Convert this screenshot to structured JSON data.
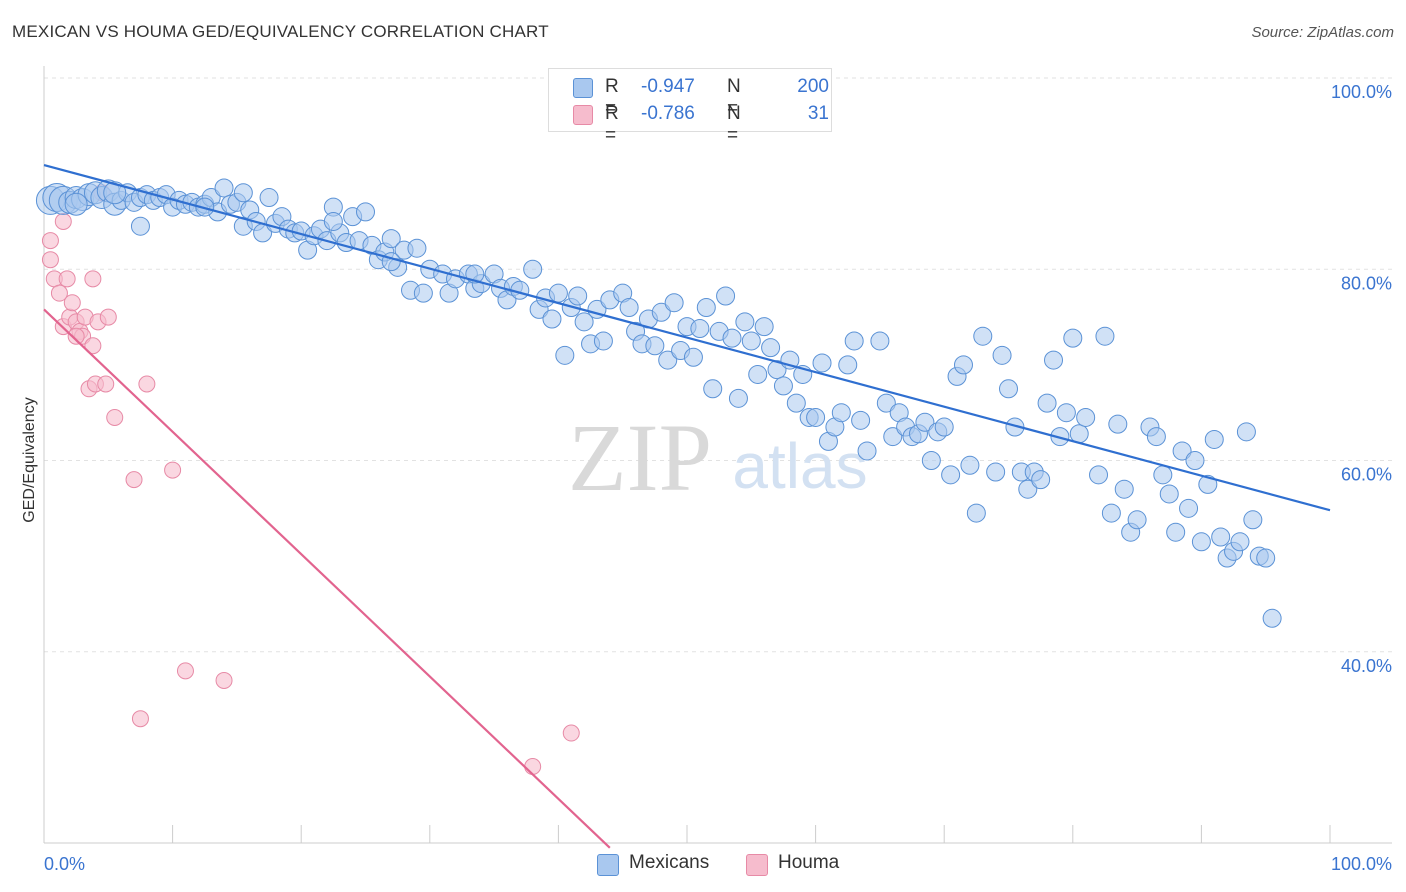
{
  "title": "MEXICAN VS HOUMA GED/EQUIVALENCY CORRELATION CHART",
  "source": "Source: ZipAtlas.com",
  "watermark": {
    "zip": "ZIP",
    "atlas": "atlas"
  },
  "colors": {
    "blue_fill": "#a9c8ef",
    "blue_stroke": "#5b92d6",
    "blue_line": "#2f6fd0",
    "pink_fill": "#f6bccd",
    "pink_stroke": "#e78aa6",
    "pink_line": "#e2648f",
    "tick_text": "#3a74d0",
    "grid": "#e2e2e2"
  },
  "legend": {
    "rows": [
      {
        "r_label": "R =",
        "r_value": "-0.947",
        "n_label": "N =",
        "n_value": "200"
      },
      {
        "r_label": "R =",
        "r_value": "-0.786",
        "n_label": "N =",
        "n_value": "31"
      }
    ]
  },
  "bottom_legend": [
    {
      "label": "Mexicans"
    },
    {
      "label": "Houma"
    }
  ],
  "chart_data": {
    "type": "scatter",
    "title": "MEXICAN VS HOUMA GED/EQUIVALENCY CORRELATION CHART",
    "xlabel": "",
    "ylabel": "GED/Equivalency",
    "xlim": [
      0,
      100
    ],
    "ylim": [
      20,
      100
    ],
    "x_tick_labels": [
      "0.0%",
      "100.0%"
    ],
    "y_ticks": [
      40,
      60,
      80,
      100
    ],
    "y_tick_labels": [
      "40.0%",
      "60.0%",
      "80.0%",
      "100.0%"
    ],
    "grid": true,
    "legend_position": "top-center",
    "series": [
      {
        "name": "Mexicans",
        "R": -0.947,
        "N": 200,
        "trend": [
          [
            0,
            90.9
          ],
          [
            100,
            54.8
          ]
        ],
        "points": [
          [
            0.5,
            87.2
          ],
          [
            1,
            87.5
          ],
          [
            1.5,
            87.2
          ],
          [
            2,
            87.0
          ],
          [
            2.5,
            87.5
          ],
          [
            3,
            87.3
          ],
          [
            3.5,
            87.8
          ],
          [
            4,
            88.0
          ],
          [
            4.5,
            87.5
          ],
          [
            5,
            88.2
          ],
          [
            5.5,
            86.8
          ],
          [
            6,
            87.2
          ],
          [
            6.5,
            88.0
          ],
          [
            7,
            87.0
          ],
          [
            7.5,
            87.5
          ],
          [
            8,
            87.8
          ],
          [
            8.5,
            87.2
          ],
          [
            9,
            87.5
          ],
          [
            9.5,
            87.8
          ],
          [
            10,
            86.5
          ],
          [
            10.5,
            87.2
          ],
          [
            11,
            86.8
          ],
          [
            11.5,
            87.0
          ],
          [
            12,
            86.5
          ],
          [
            12.5,
            86.8
          ],
          [
            13,
            87.5
          ],
          [
            13.5,
            86.0
          ],
          [
            14,
            88.5
          ],
          [
            14.5,
            86.8
          ],
          [
            15,
            87.0
          ],
          [
            15.5,
            84.5
          ],
          [
            16,
            86.2
          ],
          [
            16.5,
            85.0
          ],
          [
            17,
            83.8
          ],
          [
            17.5,
            87.5
          ],
          [
            18,
            84.8
          ],
          [
            18.5,
            85.5
          ],
          [
            19,
            84.2
          ],
          [
            19.5,
            83.8
          ],
          [
            20,
            84.0
          ],
          [
            20.5,
            82.0
          ],
          [
            21,
            83.5
          ],
          [
            21.5,
            84.2
          ],
          [
            22,
            83.0
          ],
          [
            22.5,
            86.5
          ],
          [
            23,
            83.8
          ],
          [
            23.5,
            82.8
          ],
          [
            24,
            85.5
          ],
          [
            24.5,
            83.0
          ],
          [
            25,
            86.0
          ],
          [
            25.5,
            82.5
          ],
          [
            26,
            81.0
          ],
          [
            26.5,
            81.8
          ],
          [
            27,
            83.2
          ],
          [
            27.5,
            80.2
          ],
          [
            28,
            82.0
          ],
          [
            28.5,
            77.8
          ],
          [
            29,
            82.2
          ],
          [
            29.5,
            77.5
          ],
          [
            30,
            80.0
          ],
          [
            31,
            79.5
          ],
          [
            31.5,
            77.5
          ],
          [
            32,
            79.0
          ],
          [
            33,
            79.5
          ],
          [
            33.5,
            78.0
          ],
          [
            34,
            78.5
          ],
          [
            35,
            79.5
          ],
          [
            35.5,
            78.0
          ],
          [
            36,
            76.8
          ],
          [
            36.5,
            78.2
          ],
          [
            37,
            77.8
          ],
          [
            38,
            80.0
          ],
          [
            38.5,
            75.8
          ],
          [
            39,
            77.0
          ],
          [
            39.5,
            74.8
          ],
          [
            40,
            77.5
          ],
          [
            40.5,
            71.0
          ],
          [
            41,
            76.0
          ],
          [
            41.5,
            77.2
          ],
          [
            42,
            74.5
          ],
          [
            42.5,
            72.2
          ],
          [
            43,
            75.8
          ],
          [
            43.5,
            72.5
          ],
          [
            44,
            76.8
          ],
          [
            45,
            77.5
          ],
          [
            45.5,
            76.0
          ],
          [
            46,
            73.5
          ],
          [
            46.5,
            72.2
          ],
          [
            47,
            74.8
          ],
          [
            47.5,
            72.0
          ],
          [
            48,
            75.5
          ],
          [
            48.5,
            70.5
          ],
          [
            49,
            76.5
          ],
          [
            49.5,
            71.5
          ],
          [
            50,
            74.0
          ],
          [
            50.5,
            70.8
          ],
          [
            51,
            73.8
          ],
          [
            51.5,
            76.0
          ],
          [
            52,
            67.5
          ],
          [
            52.5,
            73.5
          ],
          [
            53,
            77.2
          ],
          [
            53.5,
            72.8
          ],
          [
            54,
            66.5
          ],
          [
            54.5,
            74.5
          ],
          [
            55,
            72.5
          ],
          [
            55.5,
            69.0
          ],
          [
            56,
            74.0
          ],
          [
            56.5,
            71.8
          ],
          [
            57,
            69.5
          ],
          [
            57.5,
            67.8
          ],
          [
            58,
            70.5
          ],
          [
            58.5,
            66.0
          ],
          [
            59,
            69.0
          ],
          [
            59.5,
            64.5
          ],
          [
            60,
            64.5
          ],
          [
            60.5,
            70.2
          ],
          [
            61,
            62.0
          ],
          [
            61.5,
            63.5
          ],
          [
            62,
            65.0
          ],
          [
            62.5,
            70.0
          ],
          [
            63,
            72.5
          ],
          [
            63.5,
            64.2
          ],
          [
            64,
            61.0
          ],
          [
            65,
            72.5
          ],
          [
            65.5,
            66.0
          ],
          [
            66,
            62.5
          ],
          [
            66.5,
            65.0
          ],
          [
            67,
            63.5
          ],
          [
            67.5,
            62.5
          ],
          [
            68,
            62.8
          ],
          [
            68.5,
            64.0
          ],
          [
            69,
            60.0
          ],
          [
            69.5,
            63.0
          ],
          [
            70,
            63.5
          ],
          [
            70.5,
            58.5
          ],
          [
            71,
            68.8
          ],
          [
            71.5,
            70.0
          ],
          [
            72,
            59.5
          ],
          [
            72.5,
            54.5
          ],
          [
            73,
            73.0
          ],
          [
            74,
            58.8
          ],
          [
            74.5,
            71.0
          ],
          [
            75,
            67.5
          ],
          [
            75.5,
            63.5
          ],
          [
            76,
            58.8
          ],
          [
            76.5,
            57.0
          ],
          [
            77,
            58.8
          ],
          [
            77.5,
            58.0
          ],
          [
            78,
            66.0
          ],
          [
            78.5,
            70.5
          ],
          [
            79,
            62.5
          ],
          [
            79.5,
            65.0
          ],
          [
            80,
            72.8
          ],
          [
            80.5,
            62.8
          ],
          [
            81,
            64.5
          ],
          [
            82,
            58.5
          ],
          [
            82.5,
            73.0
          ],
          [
            83,
            54.5
          ],
          [
            83.5,
            63.8
          ],
          [
            84,
            57.0
          ],
          [
            84.5,
            52.5
          ],
          [
            85,
            53.8
          ],
          [
            86,
            63.5
          ],
          [
            86.5,
            62.5
          ],
          [
            87,
            58.5
          ],
          [
            87.5,
            56.5
          ],
          [
            88,
            52.5
          ],
          [
            88.5,
            61.0
          ],
          [
            89,
            55.0
          ],
          [
            89.5,
            60.0
          ],
          [
            90,
            51.5
          ],
          [
            90.5,
            57.5
          ],
          [
            91,
            62.2
          ],
          [
            91.5,
            52.0
          ],
          [
            92,
            49.8
          ],
          [
            92.5,
            50.5
          ],
          [
            93,
            51.5
          ],
          [
            93.5,
            63.0
          ],
          [
            94,
            53.8
          ],
          [
            94.5,
            50.0
          ],
          [
            95,
            49.8
          ],
          [
            95.5,
            43.5
          ],
          [
            15.5,
            88.0
          ],
          [
            7.5,
            84.5
          ],
          [
            2.5,
            86.8
          ],
          [
            5.5,
            88.0
          ],
          [
            12.5,
            86.5
          ],
          [
            22.5,
            85.0
          ],
          [
            27,
            80.8
          ],
          [
            33.5,
            79.5
          ]
        ],
        "sizes_note": "larger points near x=0-5"
      },
      {
        "name": "Houma",
        "R": -0.786,
        "N": 31,
        "trend": [
          [
            0,
            75.8
          ],
          [
            44,
            19.5
          ]
        ],
        "points": [
          [
            0.5,
            83.0
          ],
          [
            0.5,
            81.0
          ],
          [
            0.8,
            79.0
          ],
          [
            1.2,
            77.5
          ],
          [
            1.5,
            74.0
          ],
          [
            1.8,
            79.0
          ],
          [
            2,
            75.0
          ],
          [
            2.2,
            76.5
          ],
          [
            2.5,
            74.5
          ],
          [
            2.8,
            73.5
          ],
          [
            3,
            73.0
          ],
          [
            3.2,
            75.0
          ],
          [
            3.5,
            67.5
          ],
          [
            3.8,
            72.0
          ],
          [
            4,
            68.0
          ],
          [
            4.2,
            74.5
          ],
          [
            4.5,
            88.0
          ],
          [
            4.8,
            68.0
          ],
          [
            5,
            75.0
          ],
          [
            5.5,
            64.5
          ],
          [
            1.5,
            85.0
          ],
          [
            7,
            58.0
          ],
          [
            8,
            68.0
          ],
          [
            10,
            59.0
          ],
          [
            11,
            38.0
          ],
          [
            14,
            37.0
          ],
          [
            7.5,
            33.0
          ],
          [
            41,
            31.5
          ],
          [
            38,
            28.0
          ],
          [
            3.8,
            79.0
          ],
          [
            2.5,
            73.0
          ]
        ]
      }
    ]
  }
}
